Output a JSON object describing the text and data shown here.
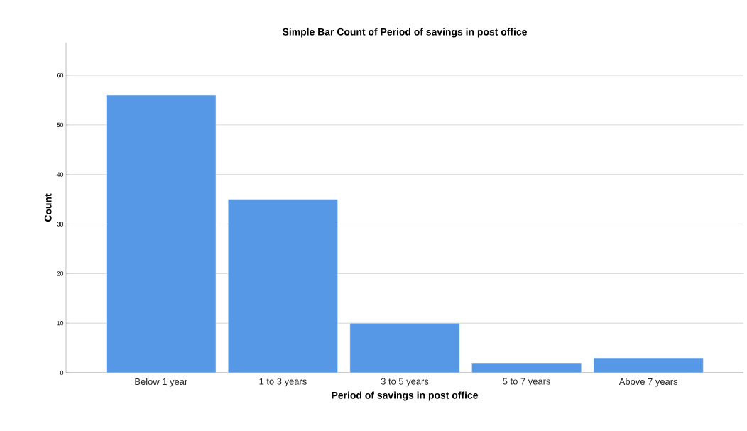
{
  "chart_data": {
    "type": "bar",
    "title": "Simple Bar Count of Period of savings in post office",
    "xlabel": "Period of savings in post office",
    "ylabel": "Count",
    "categories": [
      "Below 1 year",
      "1 to 3 years",
      "3 to 5 years",
      "5 to 7 years",
      "Above 7 years"
    ],
    "values": [
      56,
      35,
      10,
      2,
      3
    ],
    "color": "#5698e6",
    "ylim": [
      0,
      66.6
    ],
    "yticks": [
      0,
      10,
      20,
      30,
      40,
      50,
      60
    ],
    "grid": "y"
  }
}
